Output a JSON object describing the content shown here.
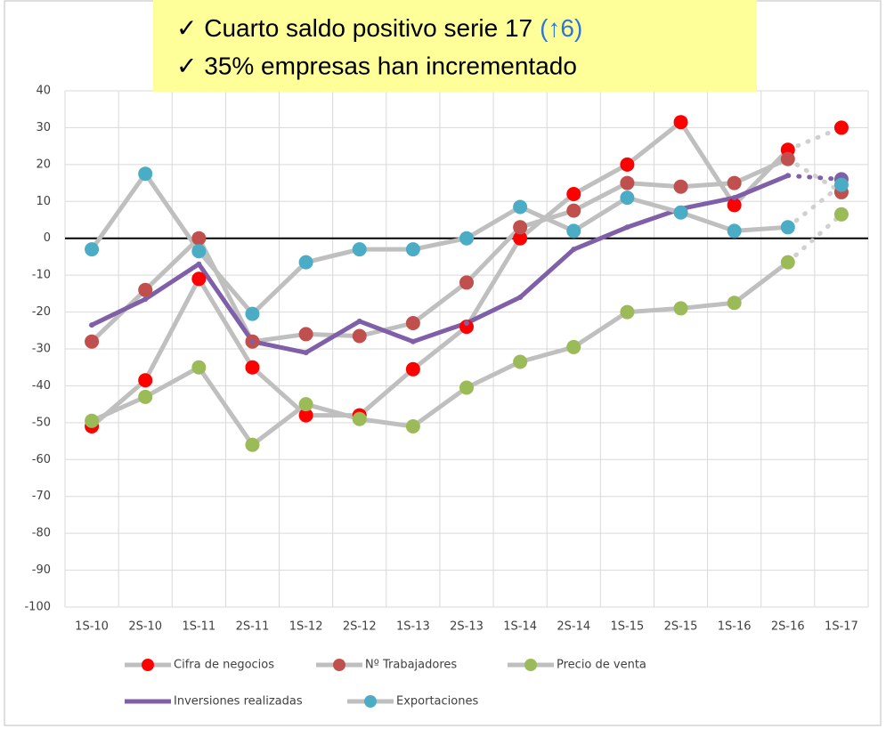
{
  "chart_data": {
    "type": "line",
    "annotations": [
      {
        "text": "✓ Cuarto saldo positivo serie 17",
        "highlight": "(↑6)"
      },
      {
        "text": "✓ 35% empresas han incrementado"
      }
    ],
    "categories": [
      "1S-10",
      "2S-10",
      "1S-11",
      "2S-11",
      "1S-12",
      "2S-12",
      "1S-13",
      "2S-13",
      "1S-14",
      "2S-14",
      "1S-15",
      "2S-15",
      "1S-16",
      "2S-16",
      "1S-17"
    ],
    "series": [
      {
        "name": "Cifra de negocios",
        "color": "#ff0000",
        "line_color": "#bfbfbf",
        "values": [
          -51,
          -38.5,
          -11,
          -35,
          -48,
          -48,
          -35.5,
          -24,
          0,
          12,
          20,
          31.5,
          9,
          24,
          30
        ]
      },
      {
        "name": "Nº Trabajadores",
        "color": "#c0504d",
        "line_color": "#bfbfbf",
        "values": [
          -28,
          -14,
          0,
          -28,
          -26,
          -26.5,
          -23,
          -12,
          3,
          7.5,
          15,
          14,
          15,
          21.5,
          12.5
        ]
      },
      {
        "name": "Precio de venta",
        "color": "#9bbb59",
        "line_color": "#bfbfbf",
        "values": [
          -49.5,
          -43,
          -35,
          -56,
          -45,
          -49,
          -51,
          -40.5,
          -33.5,
          -29.5,
          -20,
          -19,
          -17.5,
          -6.5,
          6.5
        ]
      },
      {
        "name": "Inversiones realizadas",
        "color": "#7f5fa8",
        "line_color": "#7f5fa8",
        "values": [
          -23.5,
          -16.5,
          -7,
          -28,
          -31,
          -22.5,
          -28,
          -23,
          -16,
          -3,
          3,
          8,
          11,
          17,
          16
        ]
      },
      {
        "name": "Exportaciones",
        "color": "#4bacc6",
        "line_color": "#bfbfbf",
        "values": [
          -3,
          17.5,
          -3.5,
          -20.5,
          -6.5,
          -3,
          -3,
          0,
          8.5,
          2,
          11,
          7,
          2,
          3,
          14.5
        ]
      }
    ],
    "ylim": [
      -100,
      40
    ],
    "yticks": [
      -100,
      -90,
      -80,
      -70,
      -60,
      -50,
      -40,
      -30,
      -20,
      -10,
      0,
      10,
      20,
      30,
      40
    ],
    "grid": true,
    "legend": "bottom"
  }
}
